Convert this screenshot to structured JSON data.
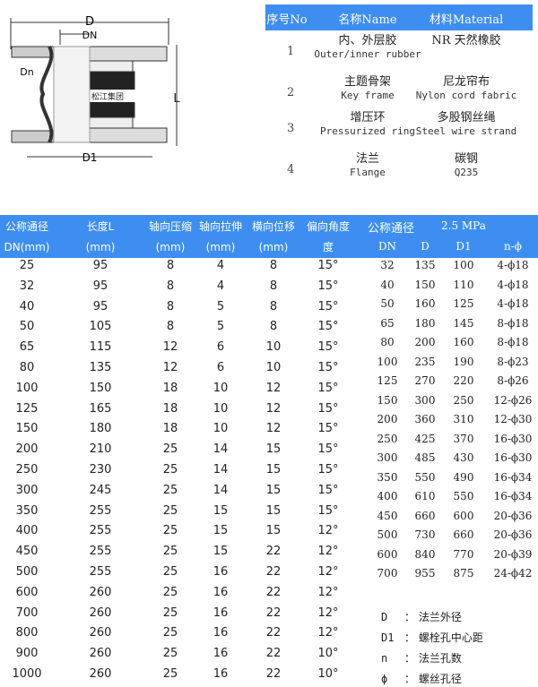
{
  "diagram": {
    "labels": {
      "D": "D",
      "DN": "DN",
      "Dn": "Dn",
      "L": "L",
      "D1": "D1",
      "brand": "松江集团"
    }
  },
  "materials": {
    "headers": [
      "序号No",
      "名称Name",
      "材料Material"
    ],
    "rows": [
      {
        "no": "1",
        "name_cn": "内、外层胶",
        "name_en": "Outer/inner rubber",
        "mat_cn": "NR  天然橡胶",
        "mat_en": ""
      },
      {
        "no": "2",
        "name_cn": "主题骨架",
        "name_en": "Key frame",
        "mat_cn": "尼龙帘布",
        "mat_en": "Nylon cord fabric"
      },
      {
        "no": "3",
        "name_cn": "增压环",
        "name_en": "Pressurized ring",
        "mat_cn": "多股钢丝绳",
        "mat_en": "Steel wire strand"
      },
      {
        "no": "4",
        "name_cn": "法兰",
        "name_en": "Flange",
        "mat_cn": "碳钢",
        "mat_en": "Q235"
      }
    ]
  },
  "spec_table": {
    "headers": [
      [
        "公称通径",
        "DN(mm)"
      ],
      [
        "长度L",
        "(mm)"
      ],
      [
        "轴向压缩",
        "(mm)"
      ],
      [
        "轴向拉伸",
        "(mm)"
      ],
      [
        "横向位移",
        "(mm)"
      ],
      [
        "偏向角度",
        "度"
      ]
    ],
    "rows": [
      [
        "25",
        "95",
        "8",
        "4",
        "8",
        "15°"
      ],
      [
        "32",
        "95",
        "8",
        "4",
        "8",
        "15°"
      ],
      [
        "40",
        "95",
        "8",
        "5",
        "8",
        "15°"
      ],
      [
        "50",
        "105",
        "8",
        "5",
        "8",
        "15°"
      ],
      [
        "65",
        "115",
        "12",
        "6",
        "10",
        "15°"
      ],
      [
        "80",
        "135",
        "12",
        "6",
        "10",
        "15°"
      ],
      [
        "100",
        "150",
        "18",
        "10",
        "12",
        "15°"
      ],
      [
        "125",
        "165",
        "18",
        "10",
        "12",
        "15°"
      ],
      [
        "150",
        "180",
        "18",
        "10",
        "12",
        "15°"
      ],
      [
        "200",
        "210",
        "25",
        "14",
        "15",
        "15°"
      ],
      [
        "250",
        "230",
        "25",
        "14",
        "15",
        "15°"
      ],
      [
        "300",
        "245",
        "25",
        "14",
        "15",
        "15°"
      ],
      [
        "350",
        "255",
        "25",
        "15",
        "15",
        "15°"
      ],
      [
        "400",
        "255",
        "25",
        "15",
        "15",
        "12°"
      ],
      [
        "450",
        "255",
        "25",
        "15",
        "22",
        "12°"
      ],
      [
        "500",
        "255",
        "25",
        "16",
        "22",
        "12°"
      ],
      [
        "600",
        "260",
        "25",
        "16",
        "22",
        "12°"
      ],
      [
        "700",
        "260",
        "25",
        "16",
        "22",
        "12°"
      ],
      [
        "800",
        "260",
        "25",
        "16",
        "22",
        "12°"
      ],
      [
        "900",
        "260",
        "25",
        "16",
        "22",
        "10°"
      ],
      [
        "1000",
        "260",
        "25",
        "16",
        "22",
        "10°"
      ]
    ]
  },
  "flange_table": {
    "title": "公称通径",
    "pressure": "2.5 MPa",
    "headers": [
      "DN",
      "D",
      "D1",
      "n-ϕ"
    ],
    "rows": [
      [
        "32",
        "135",
        "100",
        "4-ϕ18"
      ],
      [
        "40",
        "150",
        "110",
        "4-ϕ18"
      ],
      [
        "50",
        "160",
        "125",
        "4-ϕ18"
      ],
      [
        "65",
        "180",
        "145",
        "8-ϕ18"
      ],
      [
        "80",
        "200",
        "160",
        "8-ϕ18"
      ],
      [
        "100",
        "235",
        "190",
        "8-ϕ23"
      ],
      [
        "125",
        "270",
        "220",
        "8-ϕ26"
      ],
      [
        "150",
        "300",
        "250",
        "12-ϕ26"
      ],
      [
        "200",
        "360",
        "310",
        "12-ϕ30"
      ],
      [
        "250",
        "425",
        "370",
        "16-ϕ30"
      ],
      [
        "300",
        "485",
        "430",
        "16-ϕ30"
      ],
      [
        "350",
        "550",
        "490",
        "16-ϕ34"
      ],
      [
        "400",
        "610",
        "550",
        "16-ϕ34"
      ],
      [
        "450",
        "660",
        "600",
        "20-ϕ36"
      ],
      [
        "500",
        "730",
        "660",
        "20-ϕ36"
      ],
      [
        "600",
        "840",
        "770",
        "20-ϕ39"
      ],
      [
        "700",
        "955",
        "875",
        "24-ϕ42"
      ]
    ]
  },
  "legend": [
    {
      "key": "D",
      "desc": "法兰外径"
    },
    {
      "key": "D1",
      "desc": "螺栓孔中心距"
    },
    {
      "key": "n",
      "desc": "法兰孔数"
    },
    {
      "key": "ϕ",
      "desc": "螺丝孔径"
    }
  ],
  "colors": {
    "header_blue": "#3d8ef0"
  }
}
